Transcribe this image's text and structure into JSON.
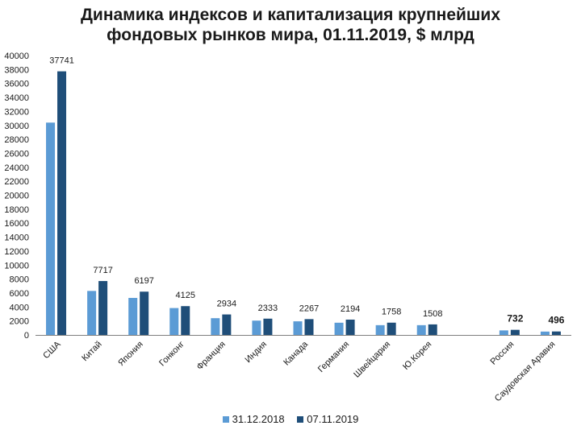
{
  "title_line1": "Динамика индексов и капитализация крупнейших",
  "title_line2": "фондовых рынков мира, 01.11.2019, $ млрд",
  "colors": {
    "series_2018": "#5b9bd5",
    "series_2019": "#1f4e79",
    "axis": "#7f7f7f",
    "text": "#1a1a1a"
  },
  "chart_data": {
    "type": "bar",
    "title": "Динамика индексов и капитализация крупнейших фондовых рынков мира, 01.11.2019, $ млрд",
    "categories": [
      "США",
      "Китай",
      "Япония",
      "Гонконг",
      "Франция",
      "Индия",
      "Канада",
      "Германия",
      "Швейцария",
      "Ю.Корея",
      "",
      "Россия",
      "Саудовская Аравия"
    ],
    "series": [
      {
        "name": "31.12.2018",
        "values": [
          30400,
          6300,
          5300,
          3850,
          2400,
          2050,
          1950,
          1750,
          1400,
          1400,
          null,
          650,
          480
        ]
      },
      {
        "name": "07.11.2019",
        "values": [
          37741,
          7717,
          6197,
          4125,
          2934,
          2333,
          2267,
          2194,
          1758,
          1508,
          null,
          732,
          496
        ]
      }
    ],
    "data_labels": [
      "37741",
      "7717",
      "6197",
      "4125",
      "2934",
      "2333",
      "2267",
      "2194",
      "1758",
      "1508",
      "",
      "732",
      "496"
    ],
    "bold_labels": [
      false,
      false,
      false,
      false,
      false,
      false,
      false,
      false,
      false,
      false,
      false,
      true,
      true
    ],
    "y_ticks": [
      "0",
      "2000",
      "4000",
      "6000",
      "8000",
      "10000",
      "12000",
      "14000",
      "16000",
      "18000",
      "20000",
      "22000",
      "24000",
      "26000",
      "28000",
      "30000",
      "32000",
      "34000",
      "36000",
      "38000",
      "40000"
    ],
    "ylim": [
      0,
      40000
    ],
    "xlabel": "",
    "ylabel": "",
    "grid": false,
    "legend_position": "bottom"
  }
}
